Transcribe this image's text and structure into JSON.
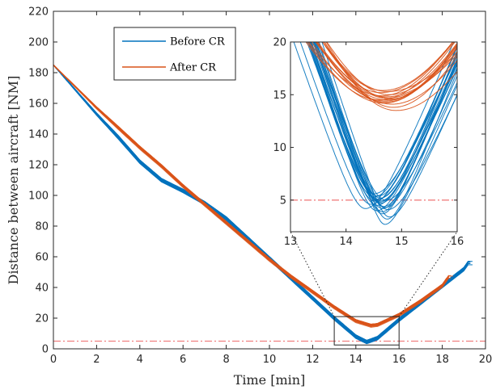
{
  "chart_data": [
    {
      "type": "line",
      "role": "main",
      "xlabel": "Time [min]",
      "ylabel": "Distance between aircraft  [NM]",
      "xlim": [
        0,
        20
      ],
      "ylim": [
        0,
        220
      ],
      "xticks": [
        0,
        2,
        4,
        6,
        8,
        10,
        12,
        14,
        16,
        18,
        20
      ],
      "yticks": [
        0,
        20,
        40,
        60,
        80,
        100,
        120,
        140,
        160,
        180,
        200,
        220
      ],
      "grid": false,
      "legend": "top-left",
      "threshold": {
        "y": 5,
        "style": "dash-dot",
        "color": "#f08080"
      },
      "zoom_box": {
        "x": [
          13,
          16
        ],
        "y": [
          2.5,
          21
        ]
      },
      "series": [
        {
          "name": "Before CR",
          "color": "#0072BD",
          "x": [
            0,
            1,
            2,
            3,
            4,
            5,
            6,
            7,
            8,
            9,
            10,
            11,
            12,
            13,
            14,
            14.5,
            15,
            16,
            17,
            18,
            19,
            19.2
          ],
          "y": [
            185,
            169,
            153,
            138,
            122,
            110,
            103,
            95,
            85,
            72,
            59,
            46,
            33,
            20,
            8,
            4.5,
            7,
            19,
            30,
            41,
            52,
            56
          ]
        },
        {
          "name": "After CR",
          "color": "#D95319",
          "x": [
            0,
            1,
            2,
            3,
            4,
            5,
            6,
            7,
            8,
            9,
            10,
            11,
            12,
            13,
            14,
            14.7,
            15,
            16,
            17,
            18,
            18.3
          ],
          "y": [
            185,
            171,
            157,
            144,
            131,
            119,
            106,
            94,
            82,
            70,
            58,
            47,
            37,
            27,
            18,
            15,
            15.5,
            22,
            31,
            41,
            47
          ]
        }
      ]
    },
    {
      "type": "line",
      "role": "inset",
      "xlim": [
        13,
        16
      ],
      "ylim": [
        2,
        20
      ],
      "xticks": [
        13,
        14,
        15,
        16
      ],
      "yticks": [
        5,
        10,
        15,
        20
      ],
      "threshold": {
        "y": 5
      },
      "series": [
        {
          "name": "Before CR",
          "color": "#0072BD",
          "min_x": [
            14.35,
            14.45,
            14.5,
            14.55,
            14.6,
            14.62,
            14.65,
            14.68,
            14.7,
            14.72,
            14.75,
            14.78,
            14.5,
            14.55,
            14.6,
            14.65,
            14.7,
            14.58,
            14.62,
            14.66,
            14.74,
            14.52,
            14.57
          ],
          "min_y": [
            4.2,
            4.6,
            5.6,
            4.0,
            4.8,
            5.2,
            3.7,
            4.4,
            2.7,
            5.0,
            4.1,
            3.4,
            5.3,
            4.5,
            4.9,
            3.9,
            4.3,
            5.4,
            4.7,
            4.2,
            3.2,
            4.9,
            5.1
          ]
        },
        {
          "name": "After CR",
          "color": "#D95319",
          "min_x": [
            14.6,
            14.65,
            14.7,
            14.75,
            14.8,
            14.68,
            14.72,
            14.78,
            14.85,
            14.62,
            14.7,
            14.76,
            14.82,
            14.66,
            14.74,
            14.9
          ],
          "min_y": [
            14.5,
            14.9,
            14.3,
            15.3,
            14.6,
            14.2,
            14.8,
            15.0,
            13.8,
            15.2,
            14.4,
            14.7,
            14.1,
            15.4,
            14.5,
            13.5
          ]
        }
      ]
    }
  ]
}
